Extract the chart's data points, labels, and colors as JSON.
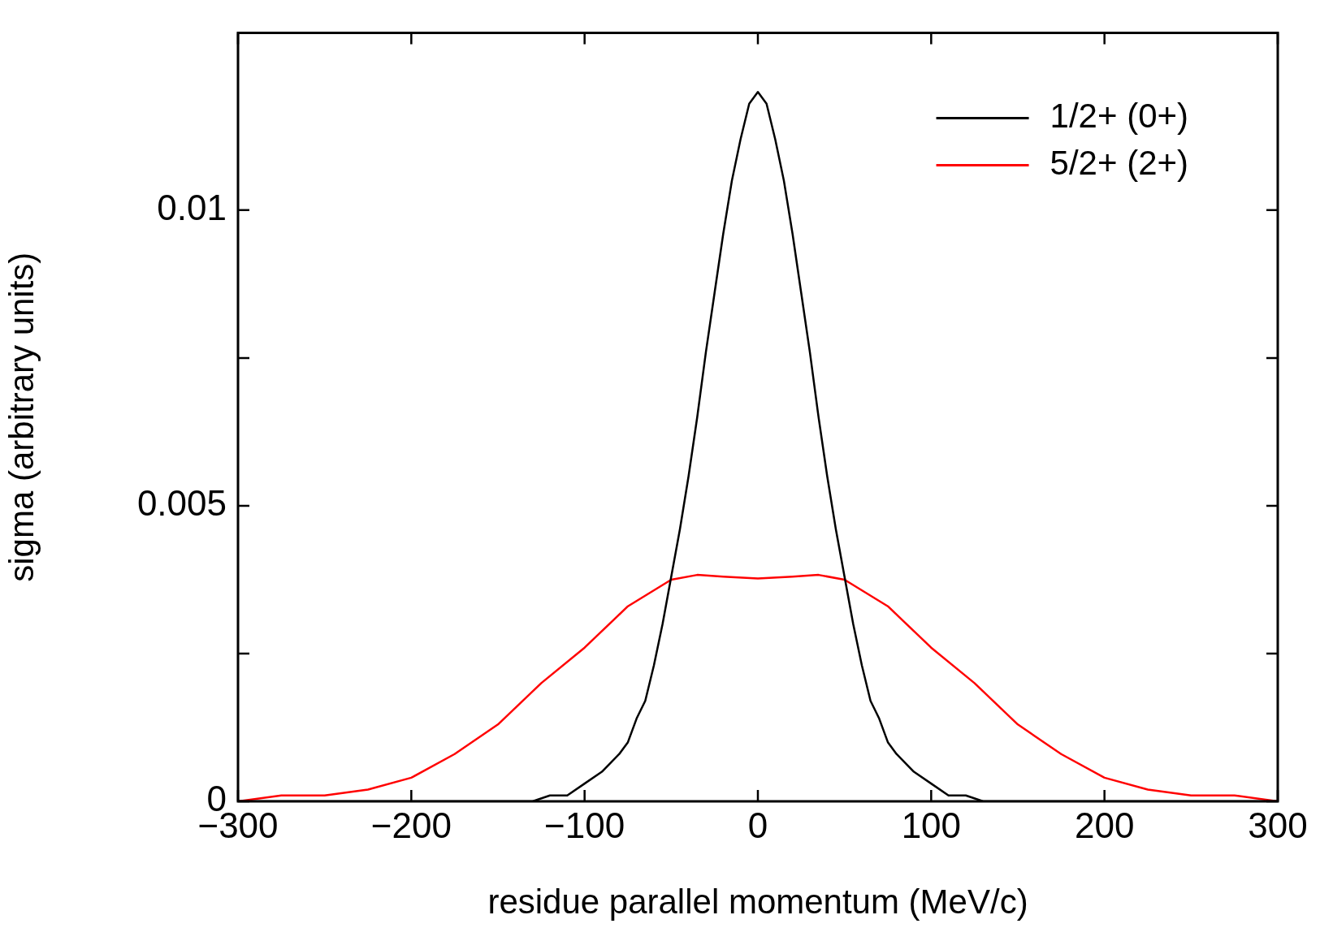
{
  "chart_data": {
    "type": "line",
    "xlabel": "residue parallel momentum (MeV/c)",
    "ylabel": "sigma (arbitrary units)",
    "xlim": [
      -300,
      300
    ],
    "xticks": [
      {
        "value": -300,
        "label": "−300"
      },
      {
        "value": -200,
        "label": "−200"
      },
      {
        "value": -100,
        "label": "−100"
      },
      0,
      100,
      200,
      300
    ],
    "ylim": [
      0,
      0.013
    ],
    "yticks": [
      0,
      {
        "value": 0.0025,
        "label": null
      },
      0.005,
      {
        "value": 0.0075,
        "label": null
      },
      0.01
    ],
    "grid": false,
    "legend": "top right",
    "marker": "none",
    "line_style": "solid",
    "series": [
      {
        "name": "1/2+ (0+)",
        "color": "#000000",
        "x": [
          -300,
          -200,
          -150,
          -130,
          -120,
          -110,
          -100,
          -90,
          -80,
          -75,
          -70,
          -65,
          -60,
          -55,
          -50,
          -45,
          -40,
          -35,
          -30,
          -25,
          -20,
          -15,
          -10,
          -5,
          0,
          5,
          10,
          15,
          20,
          25,
          30,
          35,
          40,
          45,
          50,
          55,
          60,
          65,
          70,
          75,
          80,
          90,
          100,
          110,
          120,
          130,
          150,
          200,
          300
        ],
        "values": [
          0,
          0,
          0,
          0,
          0.0001,
          0.0001,
          0.0003,
          0.0005,
          0.0008,
          0.001,
          0.0014,
          0.0017,
          0.0023,
          0.003,
          0.0038,
          0.0046,
          0.0055,
          0.0065,
          0.0076,
          0.0086,
          0.0096,
          0.0105,
          0.0112,
          0.0118,
          0.012,
          0.0118,
          0.0112,
          0.0105,
          0.0096,
          0.0086,
          0.0076,
          0.0065,
          0.0055,
          0.0046,
          0.0038,
          0.003,
          0.0023,
          0.0017,
          0.0014,
          0.001,
          0.0008,
          0.0005,
          0.0003,
          0.0001,
          0.0001,
          0,
          0,
          0,
          0
        ]
      },
      {
        "name": "5/2+ (2+)",
        "color": "#ff0000",
        "x": [
          -300,
          -275,
          -250,
          -225,
          -200,
          -175,
          -150,
          -125,
          -100,
          -75,
          -50,
          -35,
          -20,
          0,
          20,
          35,
          50,
          75,
          100,
          125,
          150,
          175,
          200,
          225,
          250,
          275,
          300
        ],
        "values": [
          0,
          0.0001,
          0.0001,
          0.0002,
          0.0004,
          0.0008,
          0.0013,
          0.002,
          0.0026,
          0.0033,
          0.00375,
          0.00383,
          0.0038,
          0.00377,
          0.0038,
          0.00383,
          0.00375,
          0.0033,
          0.0026,
          0.002,
          0.0013,
          0.0008,
          0.0004,
          0.0002,
          0.0001,
          0.0001,
          0
        ]
      }
    ]
  }
}
